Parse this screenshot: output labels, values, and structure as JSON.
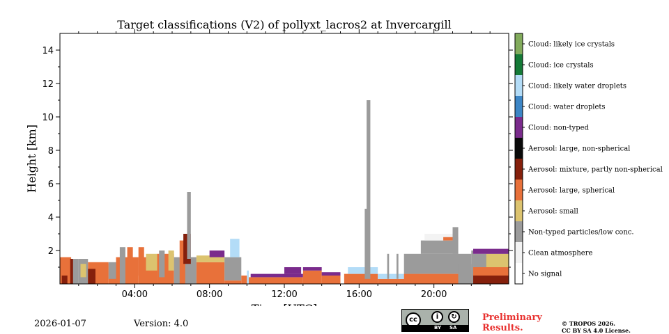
{
  "chart_data": {
    "type": "heatmap",
    "title": "Target classifications (V2) of pollyxt_lacros2 at Invercargill",
    "xlabel": "Time [UTC]",
    "ylabel": "Height [km]",
    "xlim_hours": [
      0,
      24
    ],
    "ylim_km": [
      0,
      15
    ],
    "x_ticks": [
      {
        "hour": 4,
        "label": "04:00"
      },
      {
        "hour": 8,
        "label": "08:00"
      },
      {
        "hour": 12,
        "label": "12:00"
      },
      {
        "hour": 16,
        "label": "16:00"
      },
      {
        "hour": 20,
        "label": "20:00"
      }
    ],
    "y_ticks": [
      {
        "value": 2,
        "label": "2"
      },
      {
        "value": 4,
        "label": "4"
      },
      {
        "value": 6,
        "label": "6"
      },
      {
        "value": 8,
        "label": "8"
      },
      {
        "value": 10,
        "label": "10"
      },
      {
        "value": 12,
        "label": "12"
      },
      {
        "value": 14,
        "label": "14"
      }
    ],
    "classes": [
      {
        "label": "No signal",
        "color": "#ffffff"
      },
      {
        "label": "Clean atmosphere",
        "color": "#f3f3f3"
      },
      {
        "label": "Non-typed particles/low conc.",
        "color": "#9b9b9b"
      },
      {
        "label": "Aerosol: small",
        "color": "#dcc36f"
      },
      {
        "label": "Aerosol: large, spherical",
        "color": "#e8713a"
      },
      {
        "label": "Aerosol: mixture, partly non-spherical",
        "color": "#85200c"
      },
      {
        "label": "Aerosol: large, non-spherical",
        "color": "#0a0a0a"
      },
      {
        "label": "Cloud: non-typed",
        "color": "#7a2b8c"
      },
      {
        "label": "Cloud: water droplets",
        "color": "#3d86c6"
      },
      {
        "label": "Cloud: likely water droplets",
        "color": "#b3dcf7"
      },
      {
        "label": "Cloud: ice crystals",
        "color": "#157a37"
      },
      {
        "label": "Cloud: likely ice crystals",
        "color": "#82ab5c"
      }
    ],
    "regions": [
      {
        "t0": 0.0,
        "t1": 0.6,
        "h0": 0,
        "h1": 1.6,
        "cls": 4
      },
      {
        "t0": 0.1,
        "t1": 0.4,
        "h0": 0,
        "h1": 0.5,
        "cls": 5
      },
      {
        "t0": 0.6,
        "t1": 1.0,
        "h0": 0,
        "h1": 1.5,
        "cls": 2
      },
      {
        "t0": 0.55,
        "t1": 0.7,
        "h0": 0,
        "h1": 1.5,
        "cls": 5
      },
      {
        "t0": 1.0,
        "t1": 1.5,
        "h0": 0,
        "h1": 1.5,
        "cls": 2
      },
      {
        "t0": 1.1,
        "t1": 1.4,
        "h0": 0.4,
        "h1": 1.2,
        "cls": 3
      },
      {
        "t0": 1.5,
        "t1": 2.6,
        "h0": 0,
        "h1": 1.3,
        "cls": 4
      },
      {
        "t0": 1.5,
        "t1": 1.9,
        "h0": 0,
        "h1": 0.9,
        "cls": 5
      },
      {
        "t0": 2.6,
        "t1": 3.0,
        "h0": 0,
        "h1": 1.2,
        "cls": 4
      },
      {
        "t0": 2.6,
        "t1": 3.0,
        "h0": 0.3,
        "h1": 1.3,
        "cls": 2
      },
      {
        "t0": 3.0,
        "t1": 4.2,
        "h0": 0,
        "h1": 1.6,
        "cls": 4
      },
      {
        "t0": 3.2,
        "t1": 3.5,
        "h0": 0,
        "h1": 2.2,
        "cls": 2
      },
      {
        "t0": 3.6,
        "t1": 3.9,
        "h0": 0.8,
        "h1": 2.2,
        "cls": 4
      },
      {
        "t0": 4.2,
        "t1": 5.2,
        "h0": 0,
        "h1": 1.6,
        "cls": 4
      },
      {
        "t0": 4.2,
        "t1": 4.5,
        "h0": 0.5,
        "h1": 2.2,
        "cls": 4
      },
      {
        "t0": 4.6,
        "t1": 5.2,
        "h0": 0.8,
        "h1": 1.8,
        "cls": 3
      },
      {
        "t0": 5.2,
        "t1": 6.1,
        "h0": 0,
        "h1": 1.8,
        "cls": 4
      },
      {
        "t0": 5.3,
        "t1": 5.6,
        "h0": 0.4,
        "h1": 2.0,
        "cls": 2
      },
      {
        "t0": 5.8,
        "t1": 6.1,
        "h0": 0.8,
        "h1": 2.0,
        "cls": 3
      },
      {
        "t0": 6.1,
        "t1": 7.3,
        "h0": 0,
        "h1": 1.6,
        "cls": 2
      },
      {
        "t0": 6.4,
        "t1": 6.7,
        "h0": 0,
        "h1": 2.6,
        "cls": 4
      },
      {
        "t0": 6.6,
        "t1": 7.0,
        "h0": 1.2,
        "h1": 3.0,
        "cls": 5
      },
      {
        "t0": 6.8,
        "t1": 7.0,
        "h0": 1.5,
        "h1": 5.5,
        "cls": 2
      },
      {
        "t0": 7.3,
        "t1": 8.8,
        "h0": 0,
        "h1": 1.3,
        "cls": 4
      },
      {
        "t0": 7.3,
        "t1": 8.8,
        "h0": 1.3,
        "h1": 1.7,
        "cls": 3
      },
      {
        "t0": 8.0,
        "t1": 8.8,
        "h0": 1.6,
        "h1": 2.0,
        "cls": 7
      },
      {
        "t0": 8.8,
        "t1": 9.7,
        "h0": 0.2,
        "h1": 1.6,
        "cls": 2
      },
      {
        "t0": 8.8,
        "t1": 9.7,
        "h0": 0,
        "h1": 0.2,
        "cls": 4
      },
      {
        "t0": 9.1,
        "t1": 9.6,
        "h0": 1.6,
        "h1": 2.7,
        "cls": 9
      },
      {
        "t0": 9.7,
        "t1": 10.0,
        "h0": 0,
        "h1": 0.5,
        "cls": 4
      },
      {
        "t0": 10.0,
        "t1": 10.1,
        "h0": 0,
        "h1": 0.8,
        "cls": 9
      },
      {
        "t0": 10.1,
        "t1": 13.0,
        "h0": 0,
        "h1": 0.4,
        "cls": 4
      },
      {
        "t0": 10.2,
        "t1": 13.0,
        "h0": 0.4,
        "h1": 0.6,
        "cls": 7
      },
      {
        "t0": 12.0,
        "t1": 12.9,
        "h0": 0.6,
        "h1": 1.0,
        "cls": 7
      },
      {
        "t0": 13.0,
        "t1": 14.0,
        "h0": 0,
        "h1": 0.8,
        "cls": 4
      },
      {
        "t0": 13.0,
        "t1": 14.0,
        "h0": 0.8,
        "h1": 1.0,
        "cls": 7
      },
      {
        "t0": 14.0,
        "t1": 15.0,
        "h0": 0,
        "h1": 0.5,
        "cls": 4
      },
      {
        "t0": 14.0,
        "t1": 15.0,
        "h0": 0.5,
        "h1": 0.7,
        "cls": 7
      },
      {
        "t0": 15.2,
        "t1": 17.0,
        "h0": 0,
        "h1": 0.6,
        "cls": 4
      },
      {
        "t0": 15.4,
        "t1": 17.0,
        "h0": 0.6,
        "h1": 1.0,
        "cls": 9
      },
      {
        "t0": 16.3,
        "t1": 16.6,
        "h0": 0.3,
        "h1": 4.5,
        "cls": 2
      },
      {
        "t0": 16.4,
        "t1": 16.6,
        "h0": 4.5,
        "h1": 11.0,
        "cls": 2
      },
      {
        "t0": 17.0,
        "t1": 19.2,
        "h0": 0,
        "h1": 0.3,
        "cls": 4
      },
      {
        "t0": 17.0,
        "t1": 19.2,
        "h0": 0.3,
        "h1": 0.6,
        "cls": 9
      },
      {
        "t0": 17.5,
        "t1": 17.6,
        "h0": 0.3,
        "h1": 1.8,
        "cls": 2
      },
      {
        "t0": 18.0,
        "t1": 18.1,
        "h0": 0.3,
        "h1": 1.8,
        "cls": 2
      },
      {
        "t0": 18.4,
        "t1": 22.0,
        "h0": 0.6,
        "h1": 1.8,
        "cls": 2
      },
      {
        "t0": 18.4,
        "t1": 22.0,
        "h0": 0,
        "h1": 0.6,
        "cls": 4
      },
      {
        "t0": 19.3,
        "t1": 21.3,
        "h0": 1.8,
        "h1": 2.6,
        "cls": 2
      },
      {
        "t0": 19.5,
        "t1": 21.0,
        "h0": 2.6,
        "h1": 3.0,
        "cls": 1
      },
      {
        "t0": 20.5,
        "t1": 21.3,
        "h0": 2.6,
        "h1": 2.8,
        "cls": 4
      },
      {
        "t0": 21.0,
        "t1": 21.3,
        "h0": 1.8,
        "h1": 3.4,
        "cls": 2
      },
      {
        "t0": 21.3,
        "t1": 22.0,
        "h0": 0,
        "h1": 1.2,
        "cls": 2
      },
      {
        "t0": 22.0,
        "t1": 22.1,
        "h0": 0,
        "h1": 2.0,
        "cls": 2
      },
      {
        "t0": 22.1,
        "t1": 24.0,
        "h0": 0,
        "h1": 0.5,
        "cls": 5
      },
      {
        "t0": 22.1,
        "t1": 24.0,
        "h0": 0.5,
        "h1": 1.0,
        "cls": 4
      },
      {
        "t0": 22.1,
        "t1": 24.0,
        "h0": 1.0,
        "h1": 1.8,
        "cls": 2
      },
      {
        "t0": 22.8,
        "t1": 24.0,
        "h0": 1.0,
        "h1": 1.8,
        "cls": 3
      },
      {
        "t0": 22.1,
        "t1": 24.0,
        "h0": 1.8,
        "h1": 2.1,
        "cls": 7
      }
    ]
  },
  "footer": {
    "date": "2026-01-07",
    "version": "Version: 4.0",
    "license_badge": {
      "cc": "cc",
      "by": "BY",
      "sa": "SA"
    },
    "preliminary_line1": "Preliminary",
    "preliminary_line2": "Results.",
    "copyright_line1": "© TROPOS 2026.",
    "copyright_line2": "CC BY SA 4.0 License."
  }
}
